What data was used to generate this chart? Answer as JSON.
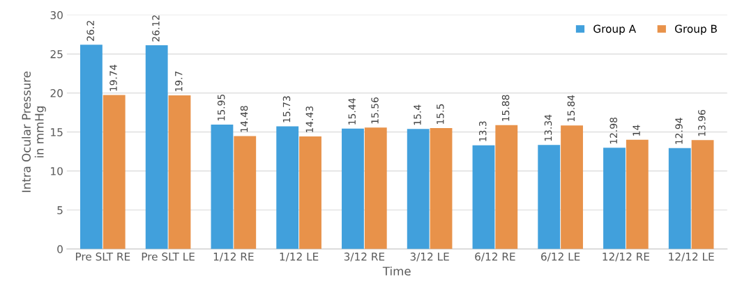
{
  "chart_data": {
    "type": "bar",
    "xlabel": "Time",
    "ylabel": "Intra Ocular Pressure\nin mmHg",
    "categories": [
      "Pre SLT RE",
      "Pre SLT LE",
      "1/12 RE",
      "1/12 LE",
      "3/12 RE",
      "3/12 LE",
      "6/12 RE",
      "6/12 LE",
      "12/12 RE",
      "12/12 LE"
    ],
    "series": [
      {
        "name": "Group A",
        "color": "#41a0dc",
        "values": [
          26.2,
          26.12,
          15.95,
          15.73,
          15.44,
          15.4,
          13.3,
          13.34,
          12.98,
          12.94
        ]
      },
      {
        "name": "Group B",
        "color": "#e8924a",
        "values": [
          19.74,
          19.7,
          14.48,
          14.43,
          15.56,
          15.5,
          15.88,
          15.84,
          14,
          13.96
        ]
      }
    ],
    "ylim": [
      0,
      30
    ],
    "yticks": [
      0,
      5,
      10,
      15,
      20,
      25,
      30
    ],
    "grid": "y",
    "legend": "top right",
    "data_labels": true
  }
}
